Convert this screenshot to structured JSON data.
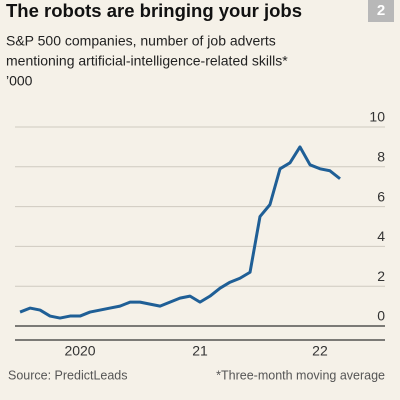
{
  "chart_data": {
    "type": "line",
    "badge": "2",
    "title": "The robots are bringing your jobs",
    "subtitle": [
      "S&P 500 companies, number of job adverts",
      "mentioning artificial-intelligence-related skills*",
      "’000"
    ],
    "source": "Source: PredictLeads",
    "note": "*Three-month moving average",
    "x": [
      2020,
      2020.083,
      2020.167,
      2020.25,
      2020.333,
      2020.417,
      2020.5,
      2020.583,
      2020.667,
      2020.75,
      2020.833,
      2020.917,
      2021,
      2021.083,
      2021.167,
      2021.25,
      2021.333,
      2021.417,
      2021.5,
      2021.583,
      2021.667,
      2021.75,
      2021.833,
      2021.917,
      2022,
      2022.083,
      2022.167,
      2022.25,
      2022.333,
      2022.417,
      2022.5,
      2022.583,
      2022.667
    ],
    "series": [
      {
        "name": "Job adverts",
        "color": "#1f5f96",
        "values": [
          0.7,
          0.9,
          0.8,
          0.5,
          0.4,
          0.5,
          0.5,
          0.7,
          0.8,
          0.9,
          1.0,
          1.2,
          1.2,
          1.1,
          1.0,
          1.2,
          1.4,
          1.5,
          1.2,
          1.5,
          1.9,
          2.2,
          2.4,
          2.7,
          5.5,
          6.1,
          7.9,
          8.2,
          9.0,
          8.1,
          7.9,
          7.8,
          7.4
        ]
      }
    ],
    "xlim": [
      2019.958,
      2023.042
    ],
    "xticks": [
      {
        "value": 2020.5,
        "label": "2020"
      },
      {
        "value": 2021.5,
        "label": "21"
      },
      {
        "value": 2022.5,
        "label": "22"
      }
    ],
    "ylim": [
      0,
      10
    ],
    "yticks": [
      0,
      2,
      4,
      6,
      8,
      10
    ],
    "grid": true
  }
}
